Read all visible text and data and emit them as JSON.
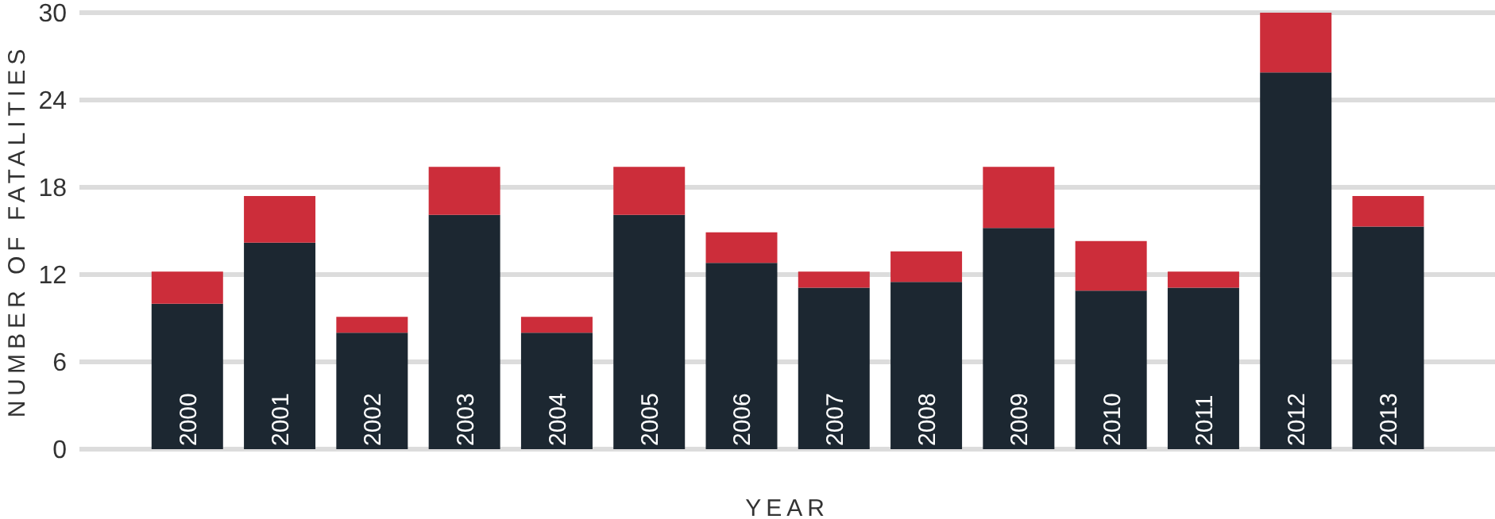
{
  "chart_data": {
    "type": "bar",
    "stacked": true,
    "xlabel": "YEAR",
    "ylabel": "NUMBER OF FATALITIES",
    "categories": [
      "2000",
      "2001",
      "2002",
      "2003",
      "2004",
      "2005",
      "2006",
      "2007",
      "2008",
      "2009",
      "2010",
      "2011",
      "2012",
      "2013"
    ],
    "series": [
      {
        "color": "#1c2731",
        "values": [
          10,
          14.2,
          8,
          16.1,
          8,
          16.1,
          12.8,
          11.1,
          11.5,
          15.2,
          10.9,
          11.1,
          25.9,
          15.3
        ]
      },
      {
        "color": "#cc2d3a",
        "values": [
          2.2,
          3.2,
          1.1,
          3.3,
          1.1,
          3.3,
          2.1,
          1.1,
          2.1,
          4.2,
          3.4,
          1.1,
          4.1,
          2.1
        ]
      }
    ],
    "ylim": [
      0,
      30
    ],
    "yticks": [
      0,
      6,
      12,
      18,
      24,
      30
    ],
    "grid": "y",
    "legend": false
  }
}
